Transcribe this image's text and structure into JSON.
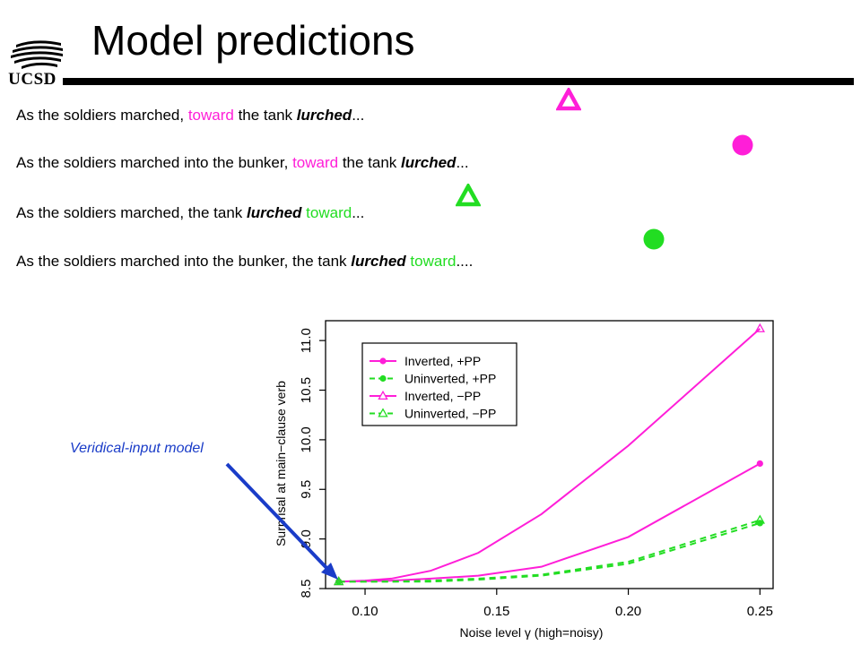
{
  "slide": {
    "title": "Model predictions",
    "logo_text": "UCSD",
    "logo_icon": "ucsd-wave-logo-icon",
    "annotation": "Veridical-input model",
    "colors": {
      "magenta": "#ff1ed8",
      "green": "#22dd22",
      "annotation": "#1a3cc8"
    }
  },
  "sentences": [
    {
      "pre": "As the soldiers marched, ",
      "adverb": "toward",
      "mid": " the tank ",
      "verb": "lurched",
      "post": "...",
      "marker": "magenta-triangle"
    },
    {
      "pre": "As the soldiers marched into the bunker, ",
      "adverb": "toward",
      "mid": " the tank ",
      "verb": "lurched",
      "post": "...",
      "marker": "magenta-circle"
    },
    {
      "pre": "As the soldiers marched, the tank ",
      "verb": "lurched",
      "mid": " ",
      "adverb": "toward",
      "post": "...",
      "marker": "green-triangle"
    },
    {
      "pre": "As the soldiers marched into the bunker, the tank ",
      "verb": "lurched",
      "mid": " ",
      "adverb": "toward",
      "post": "....",
      "marker": "green-circle"
    }
  ],
  "chart_data": {
    "type": "line",
    "title": "",
    "xlabel": "Noise level γ (high=noisy)",
    "ylabel": "Surprisal at main−clause verb",
    "xlim": [
      0.085,
      0.255
    ],
    "ylim": [
      8.5,
      11.2
    ],
    "xticks": [
      "0.10",
      "0.15",
      "0.20",
      "0.25"
    ],
    "xtick_values": [
      0.1,
      0.15,
      0.2,
      0.25
    ],
    "yticks": [
      "8.5",
      "9.0",
      "9.5",
      "10.0",
      "10.5",
      "11.0"
    ],
    "ytick_values": [
      8.5,
      9.0,
      9.5,
      10.0,
      10.5,
      11.0
    ],
    "legend_position": "top-left",
    "x": [
      0.09,
      0.1,
      0.11,
      0.125,
      0.143,
      0.167,
      0.2,
      0.25
    ],
    "series": [
      {
        "name": "Inverted, +PP",
        "color": "#ff1ed8",
        "dash": false,
        "marker": "circle",
        "values": [
          8.57,
          8.575,
          8.58,
          8.6,
          8.63,
          8.72,
          9.02,
          9.76
        ]
      },
      {
        "name": "Uninverted, +PP",
        "color": "#22dd22",
        "dash": true,
        "marker": "circle",
        "values": [
          8.57,
          8.57,
          8.57,
          8.57,
          8.59,
          8.63,
          8.75,
          9.16
        ]
      },
      {
        "name": "Inverted, −PP",
        "color": "#ff1ed8",
        "dash": false,
        "marker": "triangle",
        "values": [
          8.57,
          8.58,
          8.6,
          8.68,
          8.86,
          9.25,
          9.94,
          11.12
        ]
      },
      {
        "name": "Uninverted, −PP",
        "color": "#22dd22",
        "dash": true,
        "marker": "triangle",
        "values": [
          8.57,
          8.57,
          8.57,
          8.58,
          8.6,
          8.64,
          8.77,
          9.19
        ]
      }
    ],
    "endpoint_markers_only": true
  }
}
